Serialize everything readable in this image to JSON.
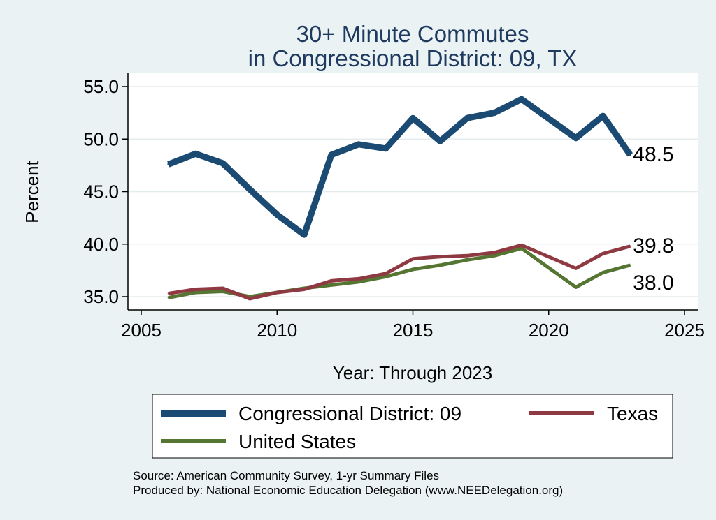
{
  "chart_data": {
    "type": "line",
    "title": "30+ Minute Commutes",
    "subtitle": "in Congressional District:  09, TX",
    "xlabel": "Year: Through 2023",
    "ylabel": "Percent",
    "xlim": [
      2005,
      2025
    ],
    "ylim": [
      34,
      56
    ],
    "x_ticks": [
      "2005",
      "2010",
      "2015",
      "2020",
      "2025"
    ],
    "y_ticks": [
      "35.0",
      "40.0",
      "45.0",
      "50.0",
      "55.0"
    ],
    "grid": true,
    "legend_position": "bottom",
    "x": [
      2006,
      2007,
      2008,
      2009,
      2010,
      2011,
      2012,
      2013,
      2014,
      2015,
      2016,
      2017,
      2018,
      2019,
      2021,
      2022,
      2023
    ],
    "series": [
      {
        "name": "Congressional District:  09",
        "color": "#1b4a72",
        "values": [
          47.6,
          48.6,
          47.7,
          45.2,
          42.8,
          40.9,
          48.5,
          49.5,
          49.1,
          52.0,
          49.8,
          52.0,
          52.5,
          53.8,
          50.1,
          52.2,
          48.5
        ],
        "end_label": "48.5"
      },
      {
        "name": "Texas",
        "color": "#8f3a42",
        "values": [
          35.3,
          35.7,
          35.8,
          34.8,
          35.4,
          35.7,
          36.5,
          36.7,
          37.2,
          38.6,
          38.8,
          38.9,
          39.2,
          39.9,
          37.7,
          39.1,
          39.8
        ],
        "end_label": "39.8"
      },
      {
        "name": "United States",
        "color": "#557532",
        "values": [
          34.9,
          35.4,
          35.5,
          35.0,
          35.4,
          35.8,
          36.1,
          36.4,
          36.9,
          37.6,
          38.0,
          38.5,
          38.9,
          39.6,
          35.9,
          37.3,
          38.0
        ],
        "end_label": "38.0"
      }
    ],
    "source_lines": [
      "Source: American Community Survey, 1-yr Summary Files",
      "Produced by: National Economic Education Delegation (www.NEEDelegation.org)"
    ]
  }
}
